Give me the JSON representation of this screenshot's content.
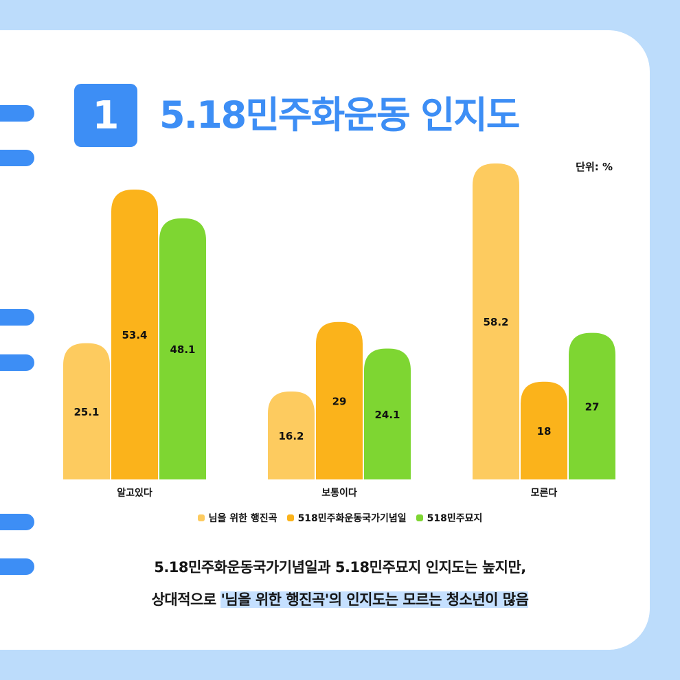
{
  "header": {
    "badge": "1",
    "title": "5.18민주화운동 인지도"
  },
  "chart_data": {
    "type": "bar",
    "unit_label": "단위: %",
    "categories": [
      "알고있다",
      "보통이다",
      "모른다"
    ],
    "series": [
      {
        "name": "님을 위한 행진곡",
        "values": [
          25.1,
          16.2,
          58.2
        ],
        "color": "#fdcb5f"
      },
      {
        "name": "518민주화운동국가기념일",
        "values": [
          53.4,
          29,
          18
        ],
        "color": "#fbb31b"
      },
      {
        "name": "518민주묘지",
        "values": [
          48.1,
          24.1,
          27
        ],
        "color": "#7ed632"
      }
    ],
    "ylim": [
      0,
      60
    ],
    "grid": false,
    "legend_position": "bottom"
  },
  "summary": {
    "line1": "5.18민주화운동국가기념일과 5.18민주묘지 인지도는 높지만,",
    "line2_prefix": "상대적으로 ",
    "line2_highlight": "'님을 위한 행진곡'의 인지도는 모르는 청소년이 많음"
  },
  "colors": {
    "accent": "#3d8ef5",
    "background": "#bcdcfb",
    "highlight": "#c5e0ff"
  }
}
